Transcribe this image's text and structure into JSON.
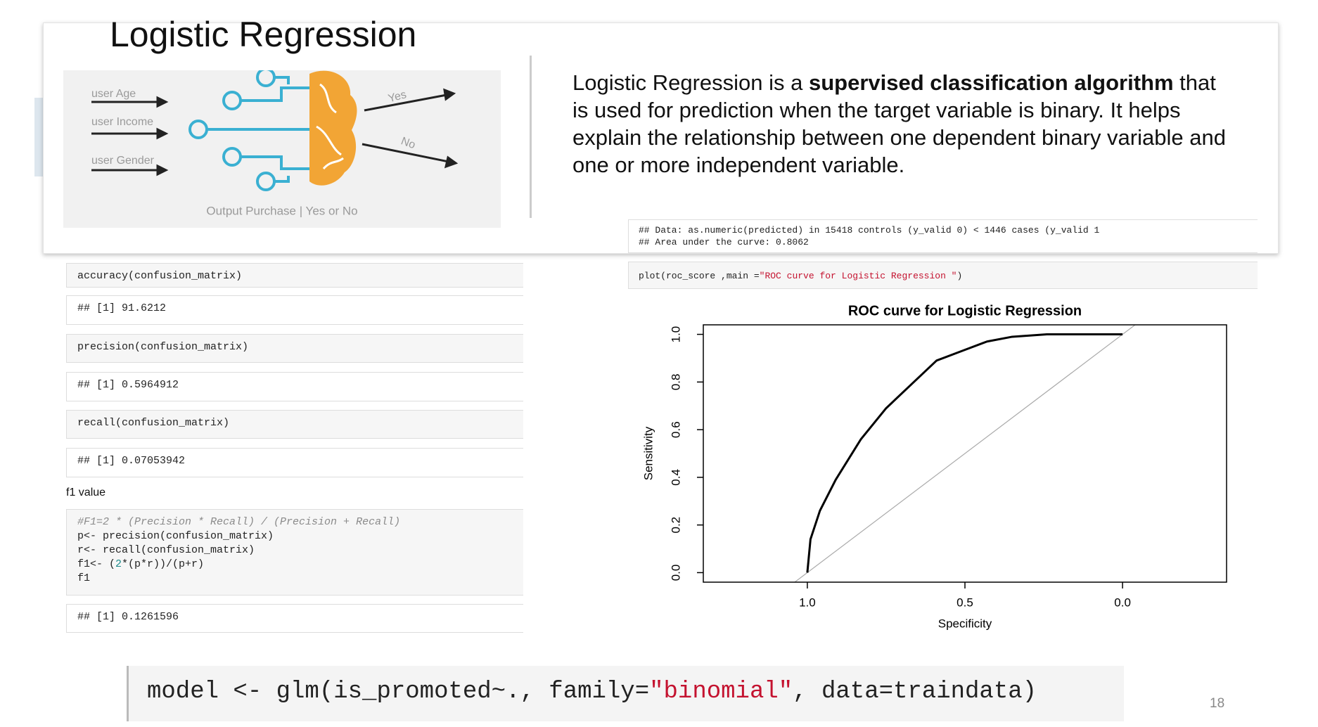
{
  "slide": {
    "title": "Logistic Regression",
    "page_number": "18"
  },
  "illustration": {
    "inputs": [
      "user Age",
      "user Income",
      "user Gender"
    ],
    "outputs": [
      "Yes",
      "No"
    ],
    "caption": "Output Purchase | Yes or No"
  },
  "description": [
    {
      "text": "Logistic Regression is a  ",
      "bold": false
    },
    {
      "text": "supervised classification algorithm",
      "bold": true
    },
    {
      "text": " that is used for prediction when the target variable is binary. It helps explain the relationship between one dependent binary variable and one or more independent variable.",
      "bold": false
    }
  ],
  "right_code": {
    "output_lines": [
      "## Data: as.numeric(predicted) in 15418 controls (y_valid 0) < 1446 cases (y_valid 1",
      "## Area under the curve: 0.8062"
    ],
    "plot_call": [
      {
        "text": "plot(roc_score ,main ="
      },
      {
        "text": "\"ROC curve for Logistic Regression \"",
        "style": "string"
      },
      {
        "text": ")"
      }
    ]
  },
  "left_blocks": [
    {
      "kind": "code",
      "lines": [
        "accuracy(confusion_matrix)"
      ]
    },
    {
      "kind": "output",
      "lines": [
        "## [1] 91.6212"
      ]
    },
    {
      "kind": "code",
      "lines": [
        "precision(confusion_matrix)"
      ]
    },
    {
      "kind": "output",
      "lines": [
        "## [1] 0.5964912"
      ]
    },
    {
      "kind": "code",
      "lines": [
        "recall(confusion_matrix)"
      ]
    },
    {
      "kind": "output",
      "lines": [
        "## [1] 0.07053942"
      ]
    },
    {
      "kind": "code",
      "lines": [
        [
          {
            "text": "#F1=2 * (Precision * Recall) / (Precision + Recall)",
            "style": "comment"
          }
        ],
        "p<- precision(confusion_matrix)",
        "r<- recall(confusion_matrix)",
        [
          {
            "text": "f1<- ("
          },
          {
            "text": "2",
            "style": "number"
          },
          {
            "text": "*(p*r))/(p+r)"
          }
        ],
        "f1"
      ]
    },
    {
      "kind": "output",
      "lines": [
        "## [1] 0.1261596"
      ]
    }
  ],
  "f1_label": "f1 value",
  "bottom_code": [
    {
      "text": "model <- glm(is_promoted~., family="
    },
    {
      "text": "\"binomial\"",
      "style": "string"
    },
    {
      "text": ", data=traindata)"
    }
  ],
  "chart_data": {
    "type": "line",
    "title": "ROC curve for Logistic Regression",
    "xlabel": "Specificity",
    "ylabel": "Sensitivity",
    "x": [
      1.0,
      0.99,
      0.96,
      0.91,
      0.83,
      0.75,
      0.67,
      0.59,
      0.51,
      0.43,
      0.35,
      0.24,
      0.0
    ],
    "values": [
      0.0,
      0.14,
      0.26,
      0.39,
      0.56,
      0.69,
      0.79,
      0.89,
      0.93,
      0.97,
      0.99,
      1.0,
      1.0
    ],
    "color": "#000000",
    "xlim": [
      1.33,
      -0.33
    ],
    "ylim": [
      -0.04,
      1.04
    ],
    "xticks": [
      {
        "value": 1,
        "label": "1.0"
      },
      0.5,
      {
        "value": 0,
        "label": "0.0"
      }
    ],
    "yticks": [
      {
        "value": 0,
        "label": "0.0"
      },
      0.2,
      0.4,
      0.6,
      0.8,
      {
        "value": 1,
        "label": "1.0"
      }
    ],
    "grid": false
  }
}
